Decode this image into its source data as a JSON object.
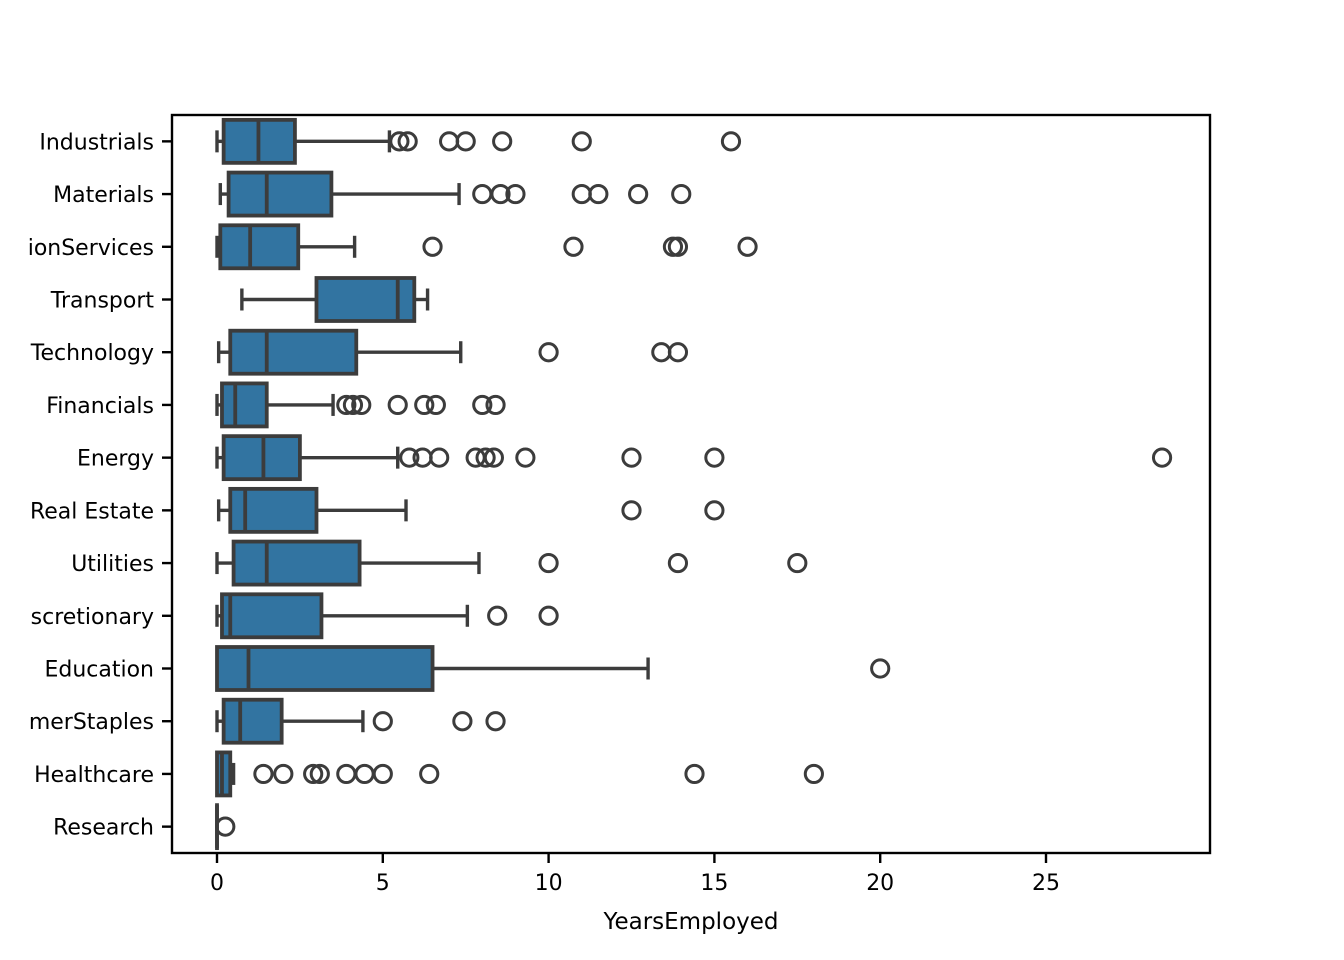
{
  "chart_data": {
    "type": "box",
    "orientation": "horizontal",
    "title": "",
    "xlabel": "YearsEmployed",
    "ylabel": "",
    "x_ticks": [
      0,
      5,
      10,
      15,
      20,
      25
    ],
    "xlim": [
      -1.36,
      29.95
    ],
    "grid": false,
    "legend": "none",
    "colors": {
      "box_fill": "#3274A1",
      "box_edge": "#3C3C3C",
      "whisker": "#3C3C3C",
      "flier": "#3C3C3C",
      "spine": "#000000",
      "background": "#FFFFFF",
      "text": "#000000"
    },
    "categories": [
      "Industrials",
      "Materials",
      "ionServices",
      "Transport",
      "Technology",
      "Financials",
      "Energy",
      "Real Estate",
      "Utilities",
      "scretionary",
      "Education",
      "merStaples",
      "Healthcare",
      "Research"
    ],
    "boxes": [
      {
        "label": "Industrials",
        "whislo": 0.0,
        "q1": 0.2,
        "med": 1.25,
        "q3": 2.35,
        "whishi": 5.2,
        "outliers": [
          5.5,
          5.75,
          7.0,
          7.5,
          8.6,
          11.0,
          15.5
        ]
      },
      {
        "label": "Materials",
        "whislo": 0.1,
        "q1": 0.35,
        "med": 1.5,
        "q3": 3.45,
        "whishi": 7.3,
        "outliers": [
          8.0,
          8.55,
          9.0,
          11.0,
          11.5,
          12.7,
          14.0
        ]
      },
      {
        "label": "ionServices",
        "whislo": 0.0,
        "q1": 0.1,
        "med": 1.0,
        "q3": 2.45,
        "whishi": 4.15,
        "outliers": [
          6.5,
          10.75,
          13.75,
          13.9,
          16.0
        ]
      },
      {
        "label": "Transport",
        "whislo": 0.75,
        "q1": 3.0,
        "med": 5.45,
        "q3": 5.95,
        "whishi": 6.35,
        "outliers": []
      },
      {
        "label": "Technology",
        "whislo": 0.05,
        "q1": 0.4,
        "med": 1.5,
        "q3": 4.2,
        "whishi": 7.35,
        "outliers": [
          10.0,
          13.4,
          13.9
        ]
      },
      {
        "label": "Financials",
        "whislo": 0.0,
        "q1": 0.15,
        "med": 0.55,
        "q3": 1.5,
        "whishi": 3.5,
        "outliers": [
          3.9,
          4.1,
          4.35,
          5.45,
          6.25,
          6.6,
          8.0,
          8.4
        ]
      },
      {
        "label": "Energy",
        "whislo": 0.0,
        "q1": 0.2,
        "med": 1.4,
        "q3": 2.5,
        "whishi": 5.45,
        "outliers": [
          5.8,
          6.2,
          6.7,
          7.8,
          8.1,
          8.35,
          9.3,
          12.5,
          15.0,
          28.5
        ]
      },
      {
        "label": "Real Estate",
        "whislo": 0.05,
        "q1": 0.4,
        "med": 0.85,
        "q3": 3.0,
        "whishi": 5.7,
        "outliers": [
          12.5,
          15.0
        ]
      },
      {
        "label": "Utilities",
        "whislo": 0.0,
        "q1": 0.5,
        "med": 1.5,
        "q3": 4.3,
        "whishi": 7.9,
        "outliers": [
          10.0,
          13.9,
          17.5
        ]
      },
      {
        "label": "scretionary",
        "whislo": 0.0,
        "q1": 0.15,
        "med": 0.4,
        "q3": 3.15,
        "whishi": 7.55,
        "outliers": [
          8.45,
          10.0
        ]
      },
      {
        "label": "Education",
        "whislo": 0.0,
        "q1": 0.0,
        "med": 0.95,
        "q3": 6.5,
        "whishi": 13.0,
        "outliers": [
          20.0
        ]
      },
      {
        "label": "merStaples",
        "whislo": 0.0,
        "q1": 0.2,
        "med": 0.7,
        "q3": 1.95,
        "whishi": 4.4,
        "outliers": [
          5.0,
          7.4,
          8.4
        ]
      },
      {
        "label": "Healthcare",
        "whislo": 0.0,
        "q1": 0.0,
        "med": 0.15,
        "q3": 0.4,
        "whishi": 0.5,
        "outliers": [
          1.4,
          2.0,
          2.9,
          3.1,
          3.9,
          4.45,
          5.0,
          6.4,
          14.4,
          18.0
        ]
      },
      {
        "label": "Research",
        "whislo": 0.0,
        "q1": 0.0,
        "med": 0.0,
        "q3": 0.0,
        "whishi": 0.0,
        "outliers": [
          0.25
        ]
      }
    ]
  }
}
